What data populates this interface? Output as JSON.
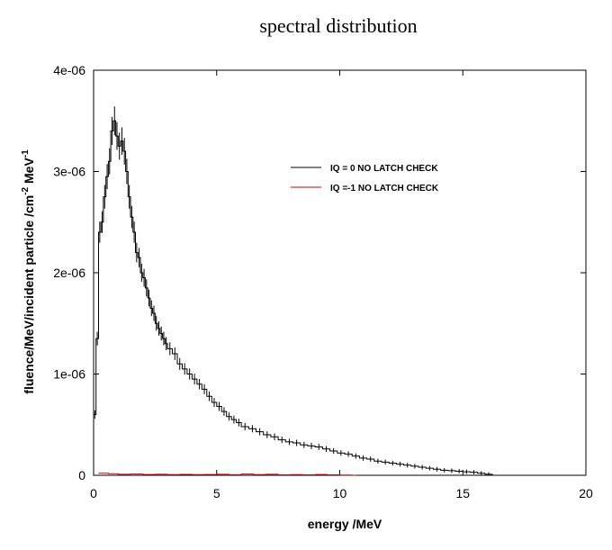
{
  "chart_data": {
    "type": "line",
    "title": "spectral distribution",
    "xlabel": "energy /MeV",
    "ylabel": {
      "prefix": "fluence/MeV/incident particle /cm",
      "sup1": "-2",
      "mid": " MeV",
      "sup2": "-1"
    },
    "xlim": [
      0,
      20
    ],
    "ylim": [
      0,
      4e-06
    ],
    "xticks": [
      {
        "value": 0,
        "label": "0"
      },
      {
        "value": 5,
        "label": "5"
      },
      {
        "value": 10,
        "label": "10"
      },
      {
        "value": 15,
        "label": "15"
      },
      {
        "value": 20,
        "label": "20"
      }
    ],
    "yticks": [
      {
        "value": 0,
        "label": "0"
      },
      {
        "value": 1e-06,
        "label": "1e-06"
      },
      {
        "value": 2e-06,
        "label": "2e-06"
      },
      {
        "value": 3e-06,
        "label": "3e-06"
      },
      {
        "value": 4e-06,
        "label": "4e-06"
      }
    ],
    "grid": false,
    "legend_position": "top-right",
    "series": [
      {
        "name": "IQ = 0 NO LATCH CHECK",
        "color": "#000000",
        "style": "histogram-step-with-error-bars",
        "x": [
          0.0,
          0.1,
          0.2,
          0.3,
          0.4,
          0.5,
          0.6,
          0.7,
          0.8,
          0.9,
          1.0,
          1.1,
          1.2,
          1.3,
          1.4,
          1.5,
          1.6,
          1.7,
          1.8,
          1.9,
          2.0,
          2.1,
          2.2,
          2.3,
          2.4,
          2.5,
          2.6,
          2.7,
          2.8,
          2.9,
          3.0,
          3.2,
          3.4,
          3.6,
          3.8,
          4.0,
          4.2,
          4.4,
          4.6,
          4.8,
          5.0,
          5.2,
          5.4,
          5.6,
          5.8,
          6.0,
          6.3,
          6.6,
          6.9,
          7.2,
          7.5,
          7.8,
          8.1,
          8.4,
          8.7,
          9.0,
          9.3,
          9.6,
          9.9,
          10.2,
          10.5,
          10.8,
          11.1,
          11.4,
          11.7,
          12.0,
          12.3,
          12.6,
          12.9,
          13.2,
          13.5,
          13.8,
          14.1,
          14.4,
          14.7,
          15.0,
          15.3,
          15.6,
          15.9,
          16.2
        ],
        "y": [
          6e-07,
          1.35e-06,
          2.4e-06,
          2.5e-06,
          2.75e-06,
          2.95e-06,
          3.1e-06,
          3.4e-06,
          3.5e-06,
          3.35e-06,
          3.25e-06,
          3.3e-06,
          3.2e-06,
          3e-06,
          2.75e-06,
          2.55e-06,
          2.4e-06,
          2.2e-06,
          2.15e-06,
          2e-06,
          1.95e-06,
          1.85e-06,
          1.75e-06,
          1.65e-06,
          1.6e-06,
          1.5e-06,
          1.45e-06,
          1.4e-06,
          1.35e-06,
          1.3e-06,
          1.25e-06,
          1.2e-06,
          1.1e-06,
          1.05e-06,
          1e-06,
          9.5e-07,
          9e-07,
          8.5e-07,
          7.8e-07,
          7.2e-07,
          6.8e-07,
          6.3e-07,
          5.8e-07,
          5.5e-07,
          5.2e-07,
          4.8e-07,
          4.6e-07,
          4.3e-07,
          4e-07,
          3.8e-07,
          3.5e-07,
          3.3e-07,
          3.2e-07,
          3e-07,
          2.9e-07,
          2.8e-07,
          2.6e-07,
          2.4e-07,
          2.2e-07,
          2.1e-07,
          1.9e-07,
          1.7e-07,
          1.6e-07,
          1.4e-07,
          1.3e-07,
          1.2e-07,
          1.1e-07,
          1e-07,
          9e-08,
          8e-08,
          7e-08,
          6e-08,
          5e-08,
          4.5e-08,
          4e-08,
          3.5e-08,
          3e-08,
          2e-08,
          1e-08,
          0.0
        ]
      },
      {
        "name": "IQ =-1 NO LATCH CHECK",
        "color": "#cc0000",
        "style": "histogram-step",
        "x": [
          0.2,
          0.6,
          1.0,
          1.5,
          2.0,
          2.5,
          3.0,
          3.5,
          4.0,
          4.5,
          5.0,
          5.5,
          6.0,
          6.5,
          7.0,
          7.5,
          8.0,
          8.5,
          9.0,
          9.5,
          10.0,
          10.5
        ],
        "y": [
          2e-08,
          1.5e-08,
          1e-08,
          1.2e-08,
          8e-09,
          1e-08,
          7e-09,
          9e-09,
          6e-09,
          8e-09,
          1e-08,
          5e-09,
          1.2e-08,
          6e-09,
          1e-08,
          4e-09,
          6e-09,
          4e-09,
          8e-09,
          4e-09,
          3e-09,
          0.0
        ]
      }
    ]
  }
}
